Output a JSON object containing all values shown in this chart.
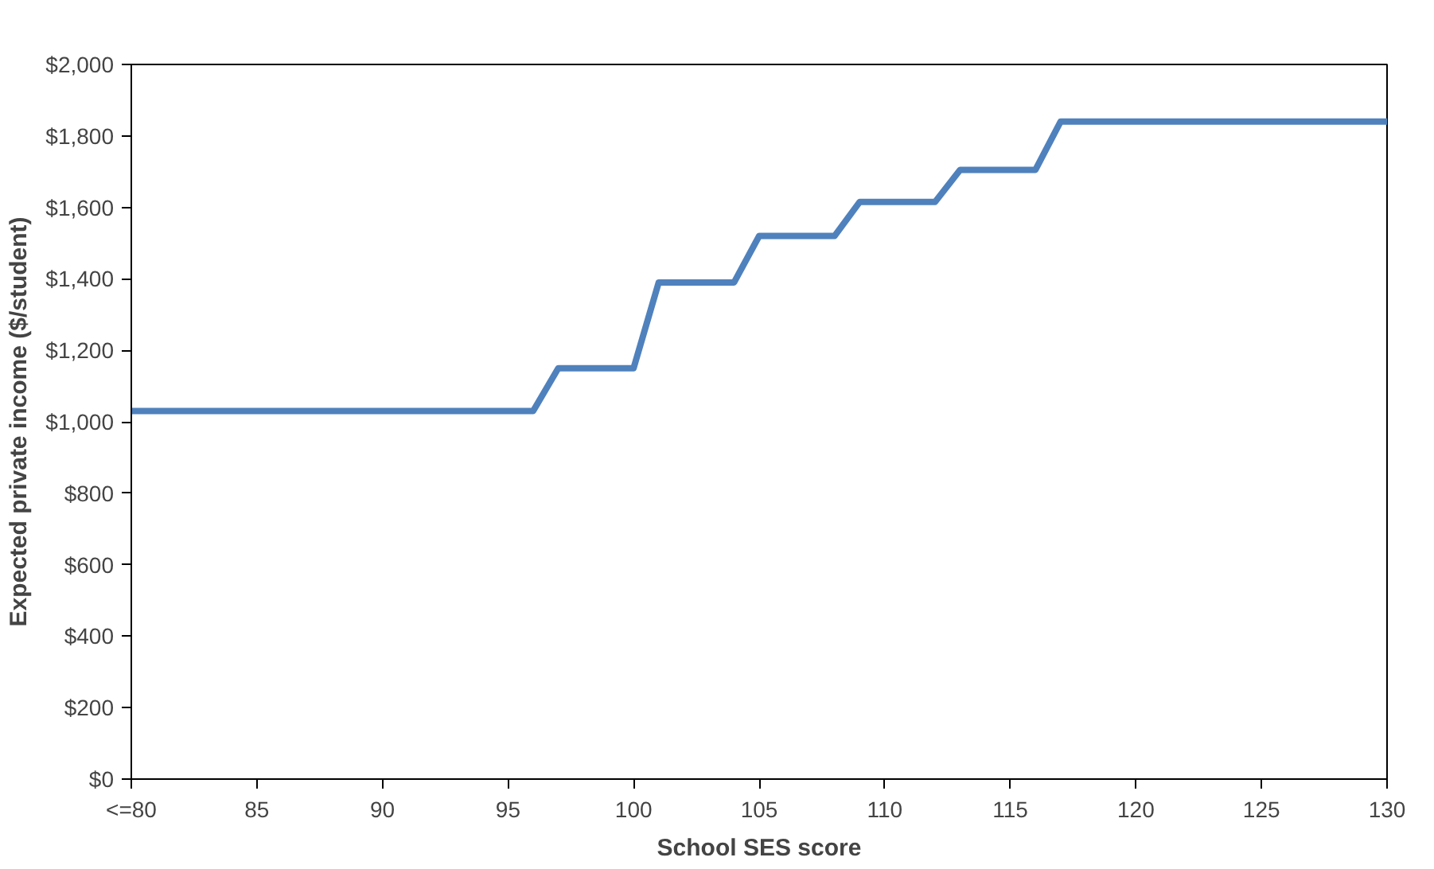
{
  "chart_data": {
    "type": "line",
    "xlabel": "School SES score",
    "ylabel": "Expected private income ($/student)",
    "x": [
      80,
      96,
      97,
      100,
      101,
      104,
      105,
      108,
      109,
      112,
      113,
      116,
      117,
      130
    ],
    "series": [
      {
        "color": "#4f81bd",
        "values": [
          1030,
          1030,
          1150,
          1150,
          1390,
          1390,
          1520,
          1520,
          1615,
          1615,
          1705,
          1705,
          1840,
          1840
        ]
      }
    ],
    "xlim": [
      80,
      130
    ],
    "ylim": [
      0,
      2000
    ],
    "xticks": [
      {
        "value": 80,
        "label": "<=80"
      },
      85,
      90,
      95,
      100,
      105,
      110,
      115,
      120,
      125,
      130
    ],
    "yticks": [
      {
        "value": 0,
        "label": "$0"
      },
      {
        "value": 200,
        "label": "$200"
      },
      {
        "value": 400,
        "label": "$400"
      },
      {
        "value": 600,
        "label": "$600"
      },
      {
        "value": 800,
        "label": "$800"
      },
      {
        "value": 1000,
        "label": "$1,000"
      },
      {
        "value": 1200,
        "label": "$1,200"
      },
      {
        "value": 1400,
        "label": "$1,400"
      },
      {
        "value": 1600,
        "label": "$1,600"
      },
      {
        "value": 1800,
        "label": "$1,800"
      },
      {
        "value": 2000,
        "label": "$2,000"
      }
    ],
    "grid": false,
    "line_style": "solid"
  }
}
